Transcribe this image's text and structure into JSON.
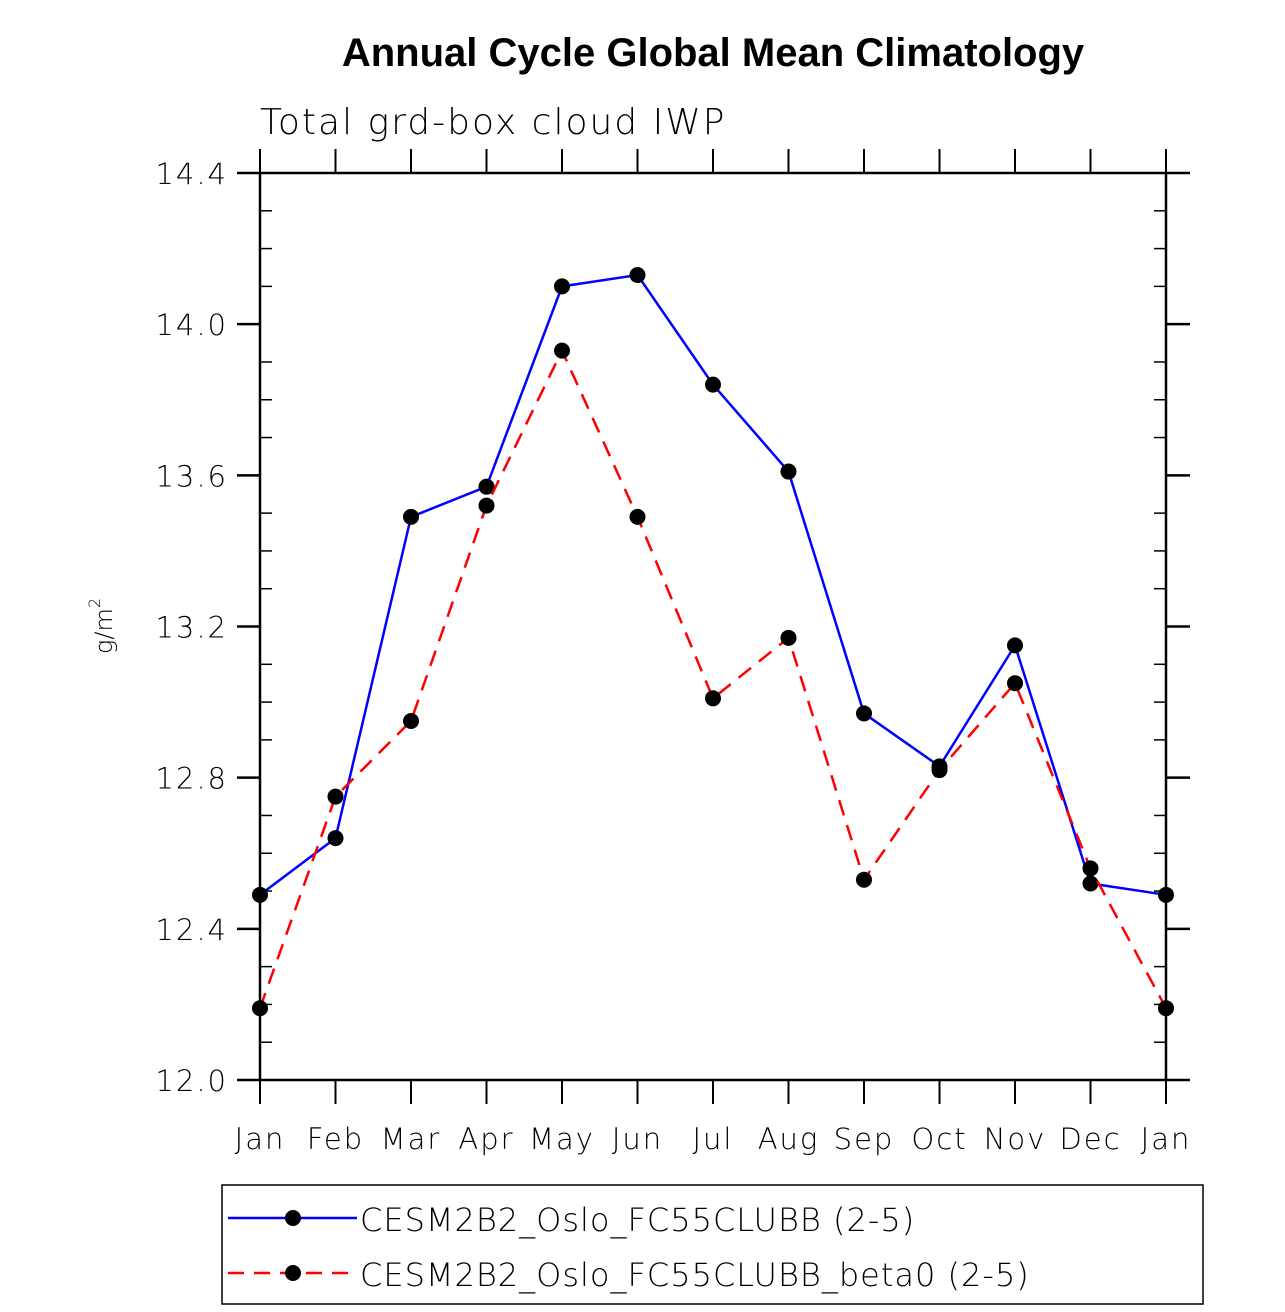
{
  "chart_data": {
    "type": "line",
    "title": "Annual Cycle Global Mean Climatology",
    "subtitle": "Total grd-box cloud IWP",
    "xlabel": "",
    "ylabel": "g/m",
    "ylabel_superscript": "2",
    "categories": [
      "Jan",
      "Feb",
      "Mar",
      "Apr",
      "May",
      "Jun",
      "Jul",
      "Aug",
      "Sep",
      "Oct",
      "Nov",
      "Dec",
      "Jan"
    ],
    "ylim": [
      12.0,
      14.4
    ],
    "yticks": [
      "12.0",
      "12.4",
      "12.8",
      "13.2",
      "13.6",
      "14.0",
      "14.4"
    ],
    "ytick_values": [
      12.0,
      12.4,
      12.8,
      13.2,
      13.6,
      14.0,
      14.4
    ],
    "yminor_step": 0.1,
    "grid": false,
    "legend_position": "bottom",
    "series": [
      {
        "name": "CESM2B2_Oslo_FC55CLUBB (2-5)",
        "color": "#0000ff",
        "line_style": "solid",
        "marker": "filled-circle",
        "marker_color": "#000000",
        "values": [
          12.49,
          12.64,
          13.49,
          13.57,
          14.1,
          14.13,
          13.84,
          13.61,
          12.97,
          12.83,
          13.15,
          12.52,
          12.49
        ]
      },
      {
        "name": "CESM2B2_Oslo_FC55CLUBB_beta0 (2-5)",
        "color": "#ff0000",
        "line_style": "dashed",
        "marker": "filled-circle",
        "marker_color": "#000000",
        "values": [
          12.19,
          12.75,
          12.95,
          13.52,
          13.93,
          13.49,
          13.01,
          13.17,
          12.53,
          12.82,
          13.05,
          12.56,
          12.19
        ]
      }
    ]
  }
}
